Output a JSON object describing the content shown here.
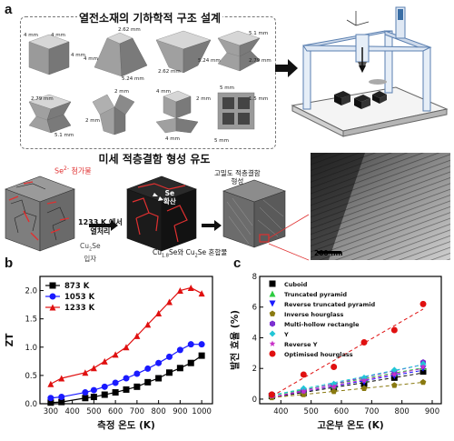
{
  "panels": {
    "a": "a",
    "b": "b",
    "c": "c"
  },
  "section_a": {
    "title": "열전소재의 기하학적 구조 설계",
    "shapes": [
      {
        "labels": [
          "4 mm",
          "4 mm",
          "4 mm"
        ]
      },
      {
        "labels": [
          "2.62 mm",
          "5.24 mm",
          "4 mm"
        ]
      },
      {
        "labels": [
          "2.62 mm",
          "5.24 mm"
        ]
      },
      {
        "labels": [
          "5.1 mm",
          "2.79 mm"
        ]
      },
      {
        "labels": [
          "2.79 mm",
          "5.1 mm"
        ]
      },
      {
        "labels": [
          "2 mm",
          "2 mm"
        ]
      },
      {
        "labels": [
          "4 mm",
          "2 mm",
          "4 mm"
        ]
      },
      {
        "labels": [
          "5 mm",
          "1.5 mm",
          "5 mm"
        ]
      }
    ]
  },
  "section_a2": {
    "title": "미세 적층결함 형성 유도",
    "labels": {
      "se_dopant": "Se",
      "se_dopant_sup": "2-",
      "se_dopant_text": "첨가물",
      "heat_line1": "1233 K 에서",
      "heat_line2": "열처리",
      "grain_line1": "Cu",
      "grain_sub": "2",
      "grain_tail": "Se",
      "grain_line2": "입자",
      "se_diff_line1": "Se",
      "se_diff_line2": "확산",
      "high_density_line1": "고밀도 적층결함",
      "high_density_line2": "형성",
      "mixture_a": "Cu",
      "mixture_a_sub": "1.8",
      "mixture_b": "Se와 Cu",
      "mixture_b_sub": "2",
      "mixture_c": "Se 혼합물",
      "scale_bar": "200 nm"
    }
  },
  "chart_data": [
    {
      "type": "line",
      "xlabel": "측정 온도 (K)",
      "ylabel": "ZT",
      "xlim": [
        250,
        1050
      ],
      "ylim": [
        0,
        2.25
      ],
      "xticks": [
        300,
        400,
        500,
        600,
        700,
        800,
        900,
        1000
      ],
      "yticks": [
        0.0,
        0.5,
        1.0,
        1.5,
        2.0
      ],
      "legend_position": "top-left",
      "series": [
        {
          "name": "873 K",
          "color": "#000000",
          "marker": "square",
          "x": [
            300,
            350,
            460,
            500,
            550,
            600,
            650,
            700,
            750,
            800,
            850,
            900,
            950,
            1000
          ],
          "y": [
            0.02,
            0.03,
            0.1,
            0.12,
            0.16,
            0.2,
            0.25,
            0.3,
            0.38,
            0.45,
            0.55,
            0.63,
            0.72,
            0.85
          ]
        },
        {
          "name": "1053 K",
          "color": "#1a1aff",
          "marker": "circle",
          "x": [
            300,
            350,
            460,
            500,
            550,
            600,
            650,
            700,
            750,
            800,
            850,
            900,
            950,
            1000
          ],
          "y": [
            0.1,
            0.12,
            0.2,
            0.24,
            0.3,
            0.37,
            0.45,
            0.53,
            0.62,
            0.72,
            0.83,
            0.95,
            1.05,
            1.05
          ]
        },
        {
          "name": "1233 K",
          "color": "#e01010",
          "marker": "triangle",
          "x": [
            300,
            350,
            460,
            500,
            550,
            600,
            650,
            700,
            750,
            800,
            850,
            900,
            950,
            1000
          ],
          "y": [
            0.35,
            0.45,
            0.55,
            0.63,
            0.75,
            0.87,
            1.0,
            1.2,
            1.4,
            1.6,
            1.8,
            2.0,
            2.05,
            1.95
          ]
        }
      ]
    },
    {
      "type": "scatter",
      "xlabel": "고온부 온도 (K)",
      "ylabel": "발전 효율 (%)",
      "xlim": [
        330,
        930
      ],
      "ylim": [
        -0.3,
        8
      ],
      "xticks": [
        400,
        500,
        600,
        700,
        800,
        900
      ],
      "yticks": [
        0,
        2,
        4,
        6,
        8
      ],
      "legend_position": "top-left",
      "series": [
        {
          "name": "Cuboid",
          "color": "#000000",
          "marker": "square",
          "x": [
            370,
            475,
            575,
            675,
            775,
            870
          ],
          "y": [
            0.2,
            0.4,
            0.7,
            1.0,
            1.4,
            1.8
          ]
        },
        {
          "name": "Truncated pyramid",
          "color": "#2ecc40",
          "marker": "triangle",
          "x": [
            370,
            475,
            575,
            675,
            775,
            870
          ],
          "y": [
            0.3,
            0.6,
            0.9,
            1.3,
            1.7,
            2.1
          ]
        },
        {
          "name": "Reverse truncated pyramid",
          "color": "#1a1aff",
          "marker": "triangle-down",
          "x": [
            370,
            475,
            575,
            675,
            775,
            870
          ],
          "y": [
            0.2,
            0.5,
            0.8,
            1.1,
            1.5,
            2.0
          ]
        },
        {
          "name": "Inverse hourglass",
          "color": "#8a7a10",
          "marker": "pentagon",
          "x": [
            370,
            475,
            575,
            675,
            775,
            870
          ],
          "y": [
            0.1,
            0.3,
            0.5,
            0.7,
            0.9,
            1.1
          ]
        },
        {
          "name": "Multi-hollow rectangle",
          "color": "#7b2fd0",
          "marker": "hexagon",
          "x": [
            370,
            475,
            575,
            675,
            775,
            870
          ],
          "y": [
            0.25,
            0.55,
            0.9,
            1.3,
            1.8,
            2.4
          ]
        },
        {
          "name": "Y",
          "color": "#22c6d6",
          "marker": "diamond",
          "x": [
            370,
            475,
            575,
            675,
            775,
            870
          ],
          "y": [
            0.3,
            0.7,
            1.0,
            1.4,
            1.9,
            2.3
          ]
        },
        {
          "name": "Reverse Y",
          "color": "#c830c8",
          "marker": "star",
          "x": [
            370,
            475,
            575,
            675,
            775,
            870
          ],
          "y": [
            0.2,
            0.5,
            0.8,
            1.2,
            1.6,
            2.1
          ]
        },
        {
          "name": "Optimised hourglass",
          "color": "#e01010",
          "marker": "circle",
          "x": [
            370,
            475,
            575,
            675,
            775,
            870
          ],
          "y": [
            0.3,
            1.6,
            2.1,
            3.7,
            4.5,
            6.2
          ]
        }
      ]
    }
  ]
}
